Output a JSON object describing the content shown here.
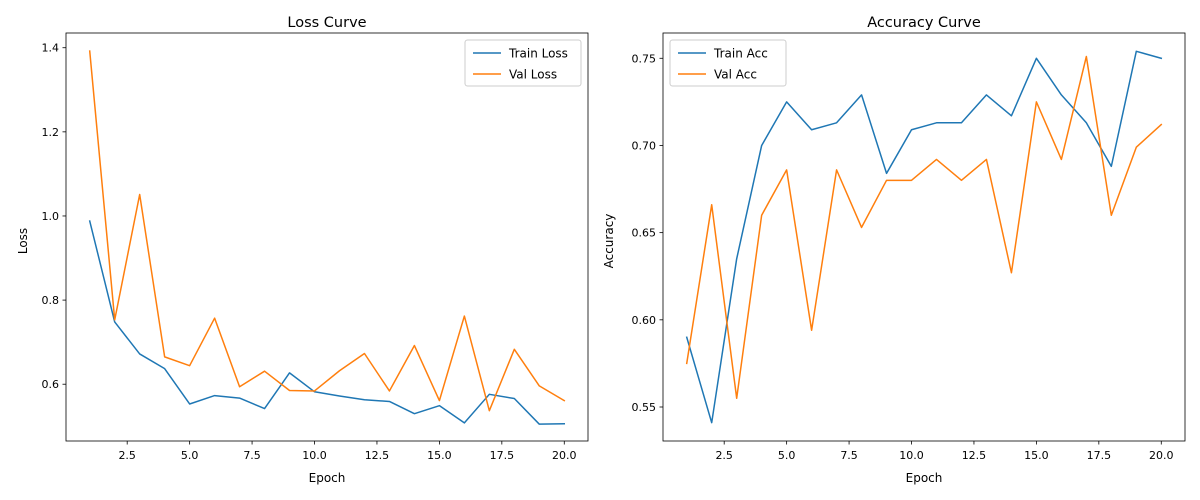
{
  "chart_data": [
    {
      "type": "line",
      "title": "Loss Curve",
      "xlabel": "Epoch",
      "ylabel": "Loss",
      "xlim": [
        0.05,
        20.95
      ],
      "ylim": [
        0.465,
        1.435
      ],
      "xticks": [
        2.5,
        5.0,
        7.5,
        10.0,
        12.5,
        15.0,
        17.5,
        20.0
      ],
      "xtick_labels": [
        "2.5",
        "5.0",
        "7.5",
        "10.0",
        "12.5",
        "15.0",
        "17.5",
        "20.0"
      ],
      "yticks": [
        0.6,
        0.8,
        1.0,
        1.2,
        1.4
      ],
      "ytick_labels": [
        "0.6",
        "0.8",
        "1.0",
        "1.2",
        "1.4"
      ],
      "x": [
        1,
        2,
        3,
        4,
        5,
        6,
        7,
        8,
        9,
        10,
        11,
        12,
        13,
        14,
        15,
        16,
        17,
        18,
        19,
        20
      ],
      "legend_position": "top-right",
      "grid": false,
      "series": [
        {
          "name": "Train Loss",
          "color": "#1f77b4",
          "values": [
            0.988,
            0.748,
            0.672,
            0.637,
            0.553,
            0.573,
            0.567,
            0.542,
            0.627,
            0.582,
            0.572,
            0.563,
            0.559,
            0.53,
            0.549,
            0.508,
            0.576,
            0.566,
            0.505,
            0.506
          ]
        },
        {
          "name": "Val Loss",
          "color": "#ff7f0e",
          "values": [
            1.392,
            0.753,
            1.051,
            0.665,
            0.644,
            0.757,
            0.594,
            0.631,
            0.585,
            0.584,
            0.632,
            0.673,
            0.584,
            0.692,
            0.561,
            0.762,
            0.537,
            0.683,
            0.596,
            0.561
          ]
        }
      ]
    },
    {
      "type": "line",
      "title": "Accuracy Curve",
      "xlabel": "Epoch",
      "ylabel": "Accuracy",
      "xlim": [
        0.05,
        20.95
      ],
      "ylim": [
        0.5305,
        0.7645
      ],
      "xticks": [
        2.5,
        5.0,
        7.5,
        10.0,
        12.5,
        15.0,
        17.5,
        20.0
      ],
      "xtick_labels": [
        "2.5",
        "5.0",
        "7.5",
        "10.0",
        "12.5",
        "15.0",
        "17.5",
        "20.0"
      ],
      "yticks": [
        0.55,
        0.6,
        0.65,
        0.7,
        0.75
      ],
      "ytick_labels": [
        "0.55",
        "0.60",
        "0.65",
        "0.70",
        "0.75"
      ],
      "x": [
        1,
        2,
        3,
        4,
        5,
        6,
        7,
        8,
        9,
        10,
        11,
        12,
        13,
        14,
        15,
        16,
        17,
        18,
        19,
        20
      ],
      "legend_position": "top-left",
      "grid": false,
      "series": [
        {
          "name": "Train Acc",
          "color": "#1f77b4",
          "values": [
            0.59,
            0.541,
            0.635,
            0.7,
            0.725,
            0.709,
            0.713,
            0.729,
            0.684,
            0.709,
            0.713,
            0.713,
            0.729,
            0.717,
            0.75,
            0.729,
            0.713,
            0.688,
            0.754,
            0.75
          ]
        },
        {
          "name": "Val Acc",
          "color": "#ff7f0e",
          "values": [
            0.575,
            0.666,
            0.555,
            0.66,
            0.686,
            0.594,
            0.686,
            0.653,
            0.68,
            0.68,
            0.692,
            0.68,
            0.692,
            0.627,
            0.725,
            0.692,
            0.751,
            0.66,
            0.699,
            0.712
          ]
        }
      ]
    }
  ]
}
